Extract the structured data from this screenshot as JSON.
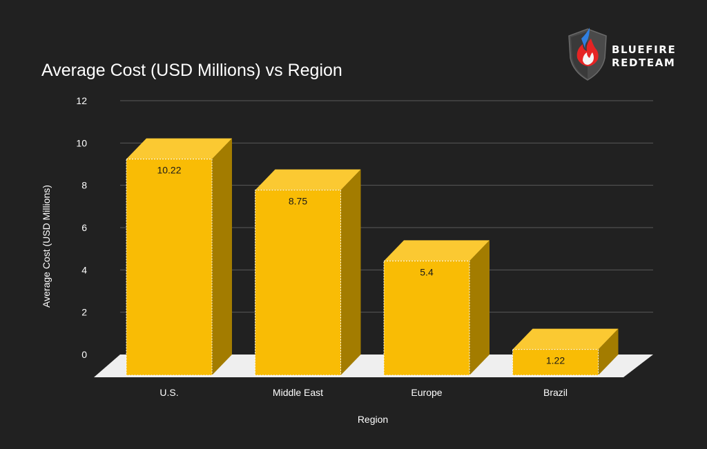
{
  "brand": {
    "line1": "BLUEFIRE",
    "line2": "REDTEAM",
    "icon": "shield-flame-icon"
  },
  "colors": {
    "background": "#212121",
    "bar_front": "#f9bc05",
    "bar_top": "#fbc932",
    "bar_side": "#a37c00",
    "floor": "#efefef",
    "grid": "#5a5a5a",
    "text": "#ffffff"
  },
  "chart_data": {
    "type": "bar",
    "title": "Average Cost (USD Millions) vs Region",
    "xlabel": "Region",
    "ylabel": "Average Cost (USD Millions)",
    "categories": [
      "U.S.",
      "Middle East",
      "Europe",
      "Brazil"
    ],
    "values": [
      10.22,
      8.75,
      5.4,
      1.22
    ],
    "value_labels": [
      "10.22",
      "8.75",
      "5.4",
      "1.22"
    ],
    "ylim": [
      0,
      12
    ],
    "yticks": [
      "0",
      "2",
      "4",
      "6",
      "8",
      "10",
      "12"
    ],
    "grid": true,
    "style": "3d"
  }
}
